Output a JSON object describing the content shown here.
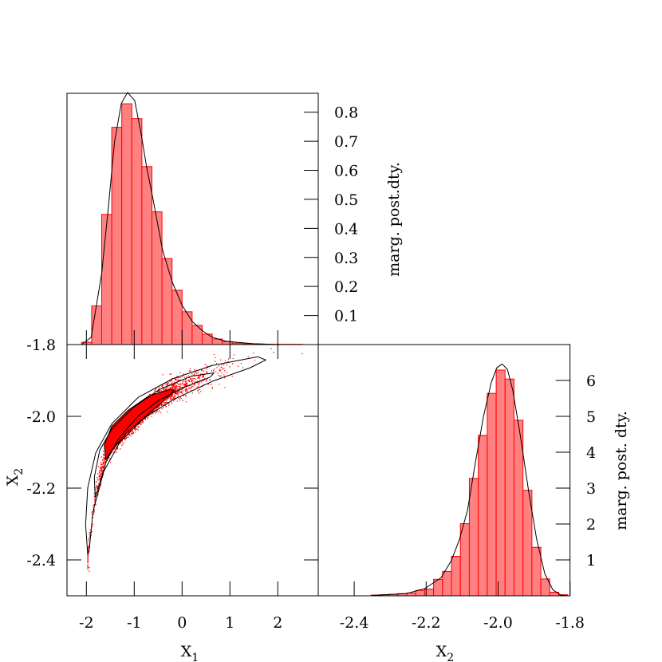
{
  "colors": {
    "bar_fill": "#ff8080",
    "bar_stroke": "#ff0000",
    "points": "#ff0000",
    "curve": "#000000",
    "axis": "#000000"
  },
  "chart_data": [
    {
      "panel": "top-left",
      "type": "bar",
      "xlabel": "",
      "ylabel": "marg. post.dty.",
      "xlim": [
        -2.405,
        2.845
      ],
      "ylim": [
        0,
        0.865
      ],
      "yticks": [
        "0.1",
        "0.2",
        "0.3",
        "0.4",
        "0.5",
        "0.6",
        "0.7",
        "0.8"
      ],
      "ytick_side": "right",
      "xticks": [
        -2,
        -1,
        0,
        1,
        2
      ],
      "bin_start": -2.1,
      "bin_width": 0.21,
      "values": [
        0.008,
        0.133,
        0.448,
        0.748,
        0.829,
        0.778,
        0.613,
        0.457,
        0.296,
        0.187,
        0.113,
        0.066,
        0.036,
        0.019,
        0.01,
        0.005,
        0.003,
        0.002,
        0.001,
        0.001,
        0.001,
        0.001
      ],
      "density_curve": [
        [
          -2.1,
          0
        ],
        [
          -1.9,
          0.025
        ],
        [
          -1.68,
          0.245
        ],
        [
          -1.54,
          0.474
        ],
        [
          -1.41,
          0.7
        ],
        [
          -1.27,
          0.83
        ],
        [
          -1.14,
          0.868
        ],
        [
          -0.99,
          0.84
        ],
        [
          -0.85,
          0.72
        ],
        [
          -0.74,
          0.61
        ],
        [
          -0.63,
          0.52
        ],
        [
          -0.41,
          0.327
        ],
        [
          -0.21,
          0.217
        ],
        [
          0,
          0.135
        ],
        [
          0.21,
          0.08
        ],
        [
          0.42,
          0.048
        ],
        [
          0.63,
          0.025
        ],
        [
          0.93,
          0.011
        ],
        [
          1.48,
          0.003
        ],
        [
          2.04,
          0
        ]
      ]
    },
    {
      "panel": "bottom-left",
      "type": "scatter",
      "xlabel": "X",
      "xlabel_sub": "1",
      "ylabel": "X",
      "ylabel_sub": "2",
      "xlim": [
        -2.405,
        2.845
      ],
      "ylim": [
        -2.5,
        -1.8
      ],
      "xticks": [
        "-2",
        "-1",
        "0",
        "1",
        "2"
      ],
      "yticks": [
        "-1.8",
        "-2.0",
        "-2.2",
        "-2.4"
      ],
      "contours": [
        [
          [
            -1.972,
            -2.385
          ],
          [
            -2.016,
            -2.302
          ],
          [
            -1.972,
            -2.199
          ],
          [
            -1.805,
            -2.102
          ],
          [
            -1.472,
            -2.021
          ],
          [
            -0.916,
            -1.947
          ],
          [
            -0.194,
            -1.895
          ],
          [
            0.639,
            -1.858
          ],
          [
            1.584,
            -1.834
          ],
          [
            1.75,
            -1.843
          ],
          [
            1.417,
            -1.865
          ],
          [
            0.639,
            -1.902
          ],
          [
            -0.194,
            -1.954
          ],
          [
            -0.805,
            -2.006
          ],
          [
            -1.305,
            -2.073
          ],
          [
            -1.638,
            -2.154
          ],
          [
            -1.861,
            -2.265
          ],
          [
            -1.944,
            -2.376
          ]
        ],
        [
          [
            -1.816,
            -2.227
          ],
          [
            -1.833,
            -2.169
          ],
          [
            -1.722,
            -2.095
          ],
          [
            -1.472,
            -2.036
          ],
          [
            -1.027,
            -1.976
          ],
          [
            -0.472,
            -1.925
          ],
          [
            0.195,
            -1.888
          ],
          [
            0.667,
            -1.879
          ],
          [
            0.584,
            -1.891
          ],
          [
            0.084,
            -1.917
          ],
          [
            -0.472,
            -1.954
          ],
          [
            -0.916,
            -1.999
          ],
          [
            -1.305,
            -2.058
          ],
          [
            -1.583,
            -2.125
          ],
          [
            -1.75,
            -2.199
          ]
        ],
        [
          [
            -1.594,
            -2.121
          ],
          [
            -1.627,
            -2.08
          ],
          [
            -1.472,
            -2.028
          ],
          [
            -1.138,
            -1.984
          ],
          [
            -0.694,
            -1.943
          ],
          [
            -0.249,
            -1.925
          ],
          [
            -0.166,
            -1.928
          ],
          [
            -0.36,
            -1.954
          ],
          [
            -0.749,
            -1.999
          ],
          [
            -1.138,
            -2.043
          ],
          [
            -1.472,
            -2.095
          ]
        ]
      ],
      "ridge": [
        [
          -1.97,
          -2.376
        ],
        [
          -1.8,
          -2.199
        ],
        [
          -1.58,
          -2.095
        ],
        [
          -1.14,
          -2.028
        ],
        [
          -0.69,
          -1.969
        ],
        [
          -0.19,
          -1.924
        ],
        [
          0.64,
          -1.88
        ],
        [
          1.75,
          -1.839
        ]
      ]
    },
    {
      "panel": "bottom-right",
      "type": "bar",
      "xlabel": "X",
      "xlabel_sub": "2",
      "ylabel": "marg. post. dty.",
      "xlim": [
        -2.5,
        -1.8
      ],
      "ylim": [
        0,
        7.0
      ],
      "xticks": [
        "-2.4",
        "-2.2",
        "-2.0",
        "-1.8"
      ],
      "yticks": [
        "1",
        "2",
        "3",
        "4",
        "5",
        "6"
      ],
      "ytick_side": "right",
      "bin_start": -2.3533,
      "bin_width": 0.02485,
      "values": [
        0.02,
        0.03,
        0.04,
        0.06,
        0.08,
        0.15,
        0.19,
        0.46,
        0.68,
        1.1,
        2.01,
        3.27,
        4.47,
        5.64,
        6.29,
        6.04,
        4.89,
        2.94,
        1.35,
        0.47,
        0.1,
        0.03
      ],
      "density_curve": [
        [
          -2.352,
          0.01
        ],
        [
          -2.256,
          0.06
        ],
        [
          -2.204,
          0.2
        ],
        [
          -2.159,
          0.5
        ],
        [
          -2.13,
          0.98
        ],
        [
          -2.107,
          1.58
        ],
        [
          -2.085,
          2.39
        ],
        [
          -2.063,
          3.72
        ],
        [
          -2.041,
          4.98
        ],
        [
          -2.019,
          5.94
        ],
        [
          -2.004,
          6.35
        ],
        [
          -1.989,
          6.46
        ],
        [
          -1.974,
          6.31
        ],
        [
          -1.959,
          5.72
        ],
        [
          -1.937,
          4.39
        ],
        [
          -1.915,
          2.91
        ],
        [
          -1.893,
          1.58
        ],
        [
          -1.87,
          0.61
        ],
        [
          -1.848,
          0.17
        ],
        [
          -1.826,
          0.02
        ],
        [
          -1.804,
          0
        ]
      ]
    }
  ]
}
